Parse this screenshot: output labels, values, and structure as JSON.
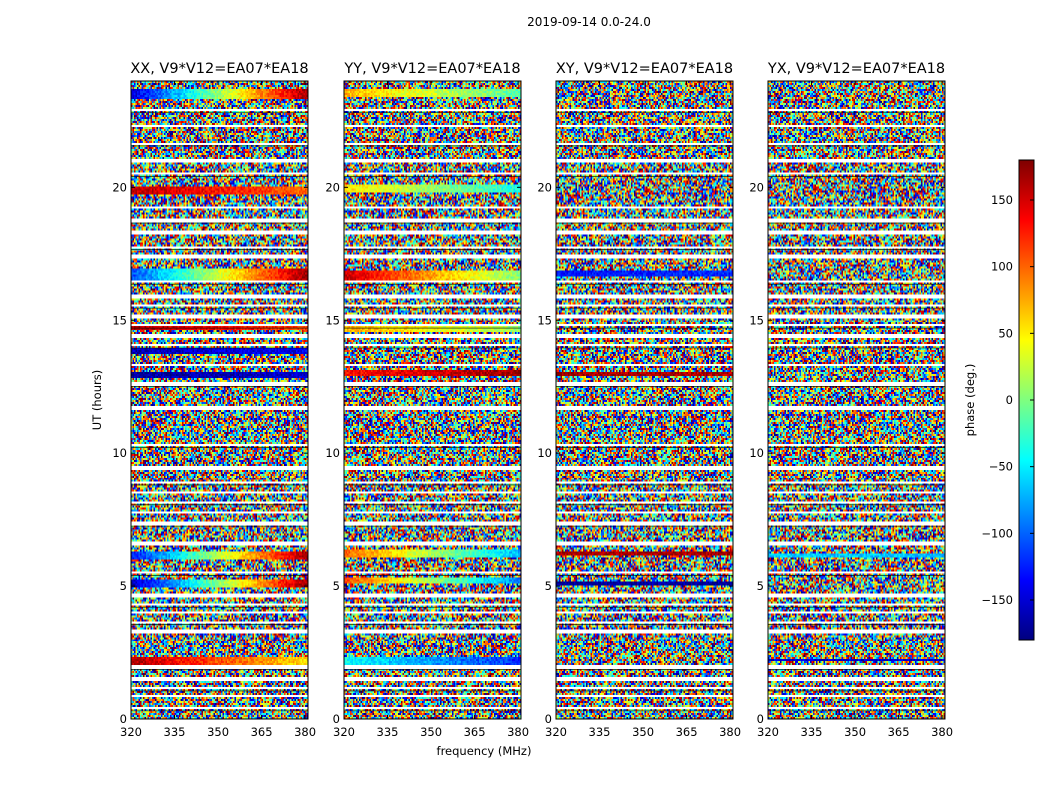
{
  "chart_data": {
    "type": "heatmap",
    "suptitle": "2019-09-14 0.0-24.0",
    "xlabel": "frequency (MHz)",
    "ylabel": "UT (hours)",
    "xlim": [
      320,
      381
    ],
    "ylim": [
      0,
      24
    ],
    "xticks": [
      320,
      335,
      350,
      365,
      380
    ],
    "yticks": [
      0,
      5,
      10,
      15,
      20
    ],
    "colorbar": {
      "label": "phase (deg.)",
      "range": [
        -180,
        180
      ],
      "ticks": [
        150,
        100,
        50,
        0,
        -50,
        -100,
        -150
      ],
      "tick_labels": [
        "150",
        "100",
        "50",
        "0",
        "−50",
        "−100",
        "−150"
      ],
      "colormap": "jet",
      "stops": [
        "#00007f",
        "#0000ff",
        "#007fff",
        "#00ffff",
        "#7fff7f",
        "#ffff00",
        "#ff7f00",
        "#ff0000",
        "#7f0000"
      ]
    },
    "flagged_hours": [
      0.4,
      0.85,
      1.15,
      1.5,
      1.95,
      3.3,
      3.65,
      4.0,
      4.3,
      4.65,
      5.5,
      6.6,
      7.35,
      7.75,
      8.15,
      8.5,
      8.9,
      9.45,
      10.3,
      11.7,
      12.6,
      13.3,
      14.05,
      14.4,
      14.8,
      15.15,
      15.55,
      15.9,
      16.45,
      17.4,
      17.75,
      18.3,
      18.75,
      19.25,
      20.5,
      21.0,
      21.65,
      22.3,
      22.9
    ],
    "panels": [
      {
        "title": "XX, V9*V12=EA07*EA18",
        "coherent_bands": [
          {
            "ut": 23.5,
            "phase_start": -150,
            "phase_end": 170,
            "width_h": 0.35
          },
          {
            "ut": 19.9,
            "phase_start": 160,
            "phase_end": 100,
            "width_h": 0.28
          },
          {
            "ut": 16.7,
            "phase_start": -110,
            "phase_end": 170,
            "width_h": 0.45
          },
          {
            "ut": 14.7,
            "phase_start": 160,
            "phase_end": 110,
            "width_h": 0.22
          },
          {
            "ut": 13.85,
            "phase_start": -160,
            "phase_end": -140,
            "width_h": 0.18
          },
          {
            "ut": 12.95,
            "phase_start": -170,
            "phase_end": -150,
            "width_h": 0.18
          },
          {
            "ut": 6.15,
            "phase_start": -130,
            "phase_end": 170,
            "width_h": 0.35
          },
          {
            "ut": 5.1,
            "phase_start": -160,
            "phase_end": 170,
            "width_h": 0.25
          },
          {
            "ut": 2.2,
            "phase_start": 160,
            "phase_end": 55,
            "width_h": 0.3
          }
        ]
      },
      {
        "title": "YY, V9*V12=EA07*EA18",
        "coherent_bands": [
          {
            "ut": 23.55,
            "phase_start": 70,
            "phase_end": -15,
            "width_h": 0.3
          },
          {
            "ut": 19.95,
            "phase_start": 55,
            "phase_end": -40,
            "width_h": 0.3
          },
          {
            "ut": 16.7,
            "phase_start": 155,
            "phase_end": 0,
            "width_h": 0.4
          },
          {
            "ut": 14.7,
            "phase_start": 75,
            "phase_end": 10,
            "width_h": 0.35
          },
          {
            "ut": 13.0,
            "phase_start": 130,
            "phase_end": 170,
            "width_h": 0.2
          },
          {
            "ut": 6.2,
            "phase_start": 100,
            "phase_end": -70,
            "width_h": 0.3
          },
          {
            "ut": 5.2,
            "phase_start": 110,
            "phase_end": -90,
            "width_h": 0.25
          },
          {
            "ut": 2.15,
            "phase_start": -40,
            "phase_end": -120,
            "width_h": 0.3
          }
        ]
      },
      {
        "title": "XY, V9*V12=EA07*EA18",
        "coherent_bands": [
          {
            "ut": 16.75,
            "phase_start": -130,
            "phase_end": -120,
            "width_h": 0.2
          },
          {
            "ut": 12.95,
            "phase_start": 170,
            "phase_end": 160,
            "width_h": 0.15
          },
          {
            "ut": 6.25,
            "phase_start": 165,
            "phase_end": 165,
            "width_h": 0.15
          },
          {
            "ut": 5.1,
            "phase_start": -170,
            "phase_end": -170,
            "width_h": 0.12
          }
        ]
      },
      {
        "title": "YX, V9*V12=EA07*EA18",
        "coherent_bands": [
          {
            "ut": 6.15,
            "phase_start": -60,
            "phase_end": -70,
            "width_h": 0.12
          },
          {
            "ut": 2.2,
            "phase_start": -150,
            "phase_end": -150,
            "width_h": 0.12
          }
        ]
      }
    ]
  }
}
